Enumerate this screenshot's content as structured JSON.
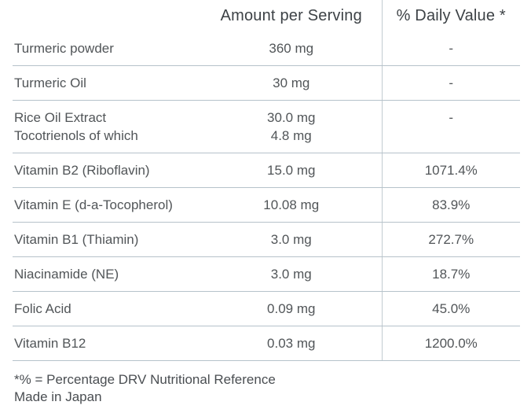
{
  "table": {
    "headers": {
      "ingredient": "",
      "amount": "Amount per Serving",
      "daily_value": "% Daily Value *"
    },
    "rows": [
      {
        "name": "Turmeric powder",
        "amount": "360 mg",
        "daily_value": "-"
      },
      {
        "name": "Turmeric Oil",
        "amount": "30 mg",
        "daily_value": "-"
      },
      {
        "name": "Rice Oil Extract\nTocotrienols of which",
        "amount": "30.0 mg\n4.8 mg",
        "daily_value": "-"
      },
      {
        "name": "Vitamin B2 (Riboflavin)",
        "amount": "15.0 mg",
        "daily_value": "1071.4%"
      },
      {
        "name": "Vitamin E (d-a-Tocopherol)",
        "amount": "10.08 mg",
        "daily_value": "83.9%"
      },
      {
        "name": "Vitamin B1 (Thiamin)",
        "amount": "3.0 mg",
        "daily_value": "272.7%"
      },
      {
        "name": "Niacinamide (NE)",
        "amount": "3.0 mg",
        "daily_value": "18.7%"
      },
      {
        "name": "Folic Acid",
        "amount": "0.09 mg",
        "daily_value": "45.0%"
      },
      {
        "name": "Vitamin B12",
        "amount": "0.03 mg",
        "daily_value": "1200.0%"
      }
    ]
  },
  "footer": {
    "note": "*% = Percentage DRV Nutritional Reference",
    "origin": "Made in Japan"
  },
  "colors": {
    "header_text": "#3d4246",
    "body_text": "#515558",
    "row_divider": "#b6c2ca",
    "column_divider": "#c2cbd1",
    "background": "#ffffff"
  }
}
